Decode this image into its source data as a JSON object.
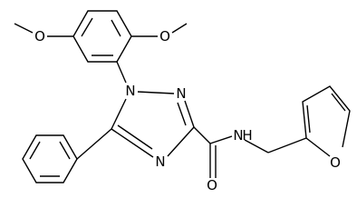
{
  "atoms": [
    {
      "label": "O"
    },
    {
      "label": "O"
    },
    {
      "label": "N"
    },
    {
      "label": "N"
    },
    {
      "label": "N"
    },
    {
      "label": "O"
    },
    {
      "label": "N"
    },
    {
      "label": "H"
    },
    {
      "label": "O"
    }
  ]
}
